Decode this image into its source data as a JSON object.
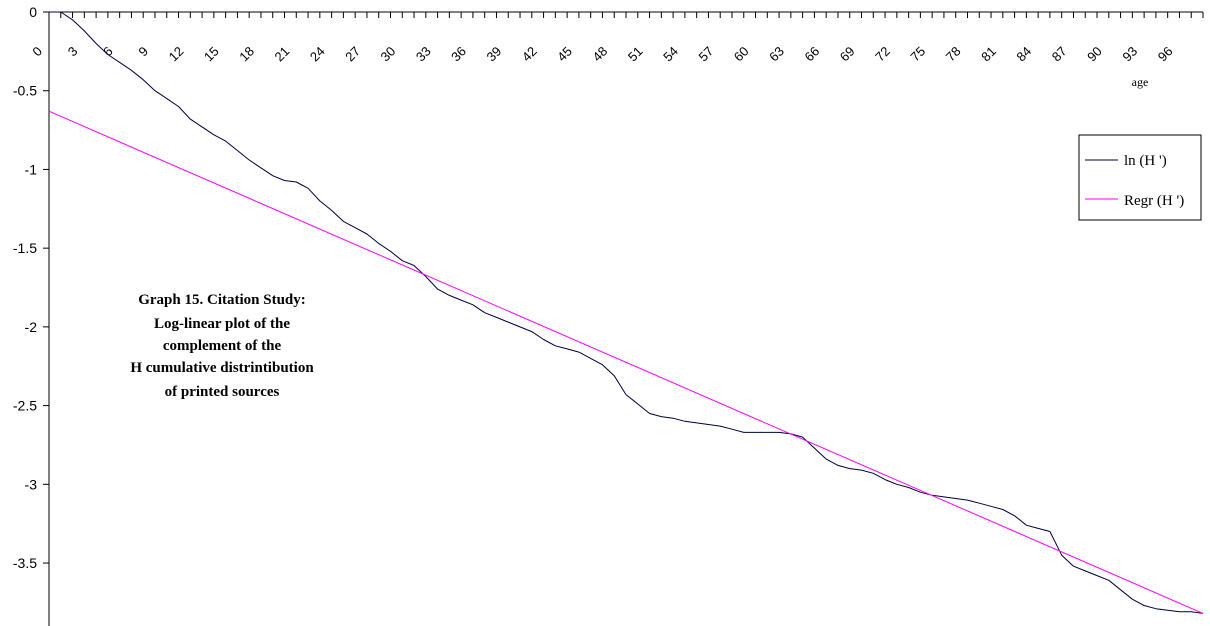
{
  "chart_data": {
    "type": "line",
    "title": "",
    "xlabel": "age",
    "ylabel": "",
    "xlim": [
      0,
      98
    ],
    "ylim": [
      -3.9,
      0
    ],
    "x_ticks": [
      "0",
      "3",
      "6",
      "9",
      "12",
      "15",
      "18",
      "21",
      "24",
      "27",
      "30",
      "33",
      "36",
      "39",
      "42",
      "45",
      "48",
      "51",
      "54",
      "57",
      "60",
      "63",
      "66",
      "69",
      "72",
      "75",
      "78",
      "81",
      "84",
      "87",
      "90",
      "93",
      "96"
    ],
    "y_ticks": [
      0,
      -0.5,
      -1,
      -1.5,
      -2,
      -2.5,
      -3,
      -3.5
    ],
    "y_tick_labels": [
      "0",
      "-0.5",
      "-1",
      "-1.5",
      "-2",
      "-2.5",
      "-3",
      "-3.5"
    ],
    "grid": false,
    "legend_position": "right",
    "annotation": [
      "Graph 15.  Citation Study:",
      "Log-linear plot of the",
      "complement of the",
      "H cumulative distrintibution",
      "of printed sources"
    ],
    "series": [
      {
        "name": "ln (H ')",
        "color": "#000040",
        "x": [
          0,
          1,
          2,
          3,
          4,
          5,
          6,
          7,
          8,
          9,
          10,
          11,
          12,
          13,
          14,
          15,
          16,
          17,
          18,
          19,
          20,
          21,
          22,
          23,
          24,
          25,
          26,
          27,
          28,
          29,
          30,
          31,
          32,
          33,
          34,
          35,
          36,
          37,
          38,
          39,
          40,
          41,
          42,
          43,
          44,
          45,
          46,
          47,
          48,
          49,
          50,
          51,
          52,
          53,
          54,
          55,
          56,
          57,
          58,
          59,
          60,
          61,
          62,
          63,
          64,
          65,
          66,
          67,
          68,
          69,
          70,
          71,
          72,
          73,
          74,
          75,
          76,
          77,
          78,
          79,
          80,
          81,
          82,
          83,
          84,
          85,
          86,
          87,
          88,
          89,
          90,
          91,
          92,
          93,
          94,
          95,
          96,
          97,
          98
        ],
        "y": [
          0,
          0,
          -0.05,
          -0.12,
          -0.2,
          -0.27,
          -0.32,
          -0.37,
          -0.43,
          -0.5,
          -0.55,
          -0.6,
          -0.68,
          -0.73,
          -0.78,
          -0.82,
          -0.88,
          -0.94,
          -0.99,
          -1.04,
          -1.07,
          -1.08,
          -1.12,
          -1.2,
          -1.26,
          -1.33,
          -1.37,
          -1.41,
          -1.47,
          -1.52,
          -1.58,
          -1.61,
          -1.68,
          -1.76,
          -1.8,
          -1.83,
          -1.86,
          -1.91,
          -1.94,
          -1.97,
          -2.0,
          -2.03,
          -2.08,
          -2.12,
          -2.14,
          -2.16,
          -2.2,
          -2.24,
          -2.31,
          -2.43,
          -2.49,
          -2.55,
          -2.57,
          -2.58,
          -2.6,
          -2.61,
          -2.62,
          -2.63,
          -2.65,
          -2.67,
          -2.67,
          -2.67,
          -2.67,
          -2.68,
          -2.7,
          -2.77,
          -2.84,
          -2.88,
          -2.9,
          -2.91,
          -2.93,
          -2.97,
          -3.0,
          -3.02,
          -3.05,
          -3.07,
          -3.08,
          -3.09,
          -3.1,
          -3.12,
          -3.14,
          -3.16,
          -3.2,
          -3.26,
          -3.28,
          -3.3,
          -3.45,
          -3.52,
          -3.55,
          -3.58,
          -3.61,
          -3.67,
          -3.73,
          -3.77,
          -3.79,
          -3.8,
          -3.81,
          -3.81,
          -3.82
        ]
      },
      {
        "name": "Regr (H ')",
        "color": "#ff00ff",
        "x": [
          0,
          98
        ],
        "y": [
          -0.63,
          -3.82
        ]
      }
    ]
  }
}
